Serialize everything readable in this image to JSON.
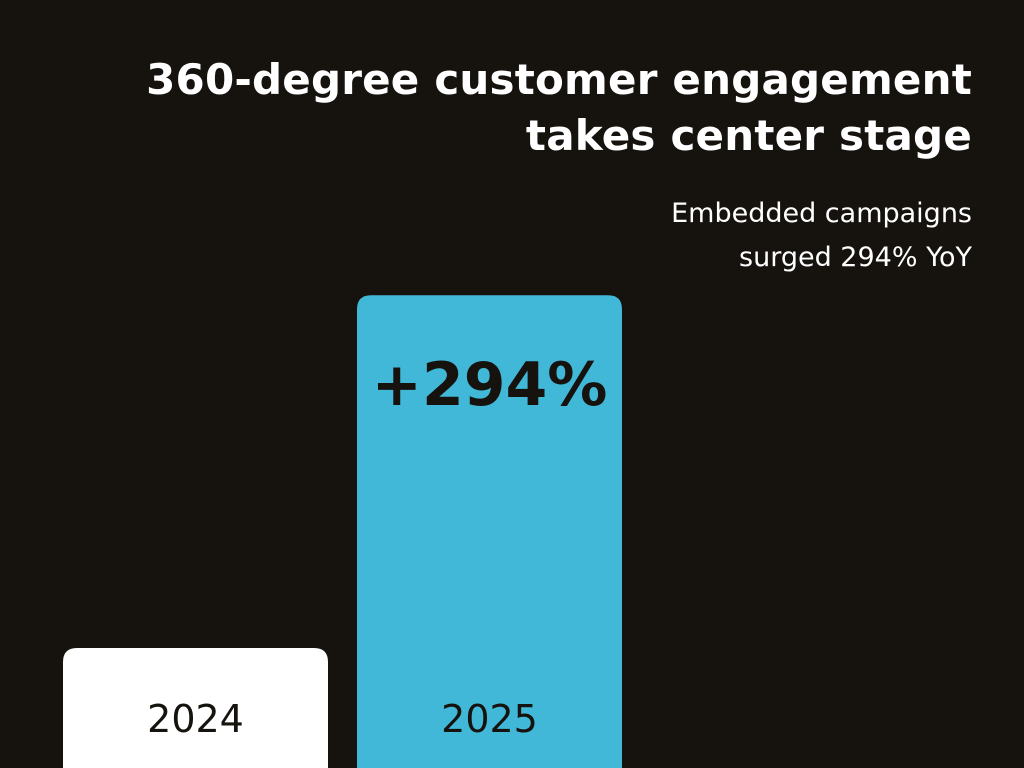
{
  "chart_data": {
    "type": "bar",
    "title_lines": [
      "360-degree customer engagement",
      "takes center stage"
    ],
    "subtitle_lines": [
      "Embedded campaigns",
      "surged 294% YoY"
    ],
    "categories": [
      "2024",
      "2025"
    ],
    "values": [
      1,
      3.94
    ],
    "data_labels": [
      "",
      "+294%"
    ],
    "colors": [
      "#ffffff",
      "#42b8d8"
    ],
    "background": "#16130f",
    "grid": false,
    "axes_visible": false
  }
}
